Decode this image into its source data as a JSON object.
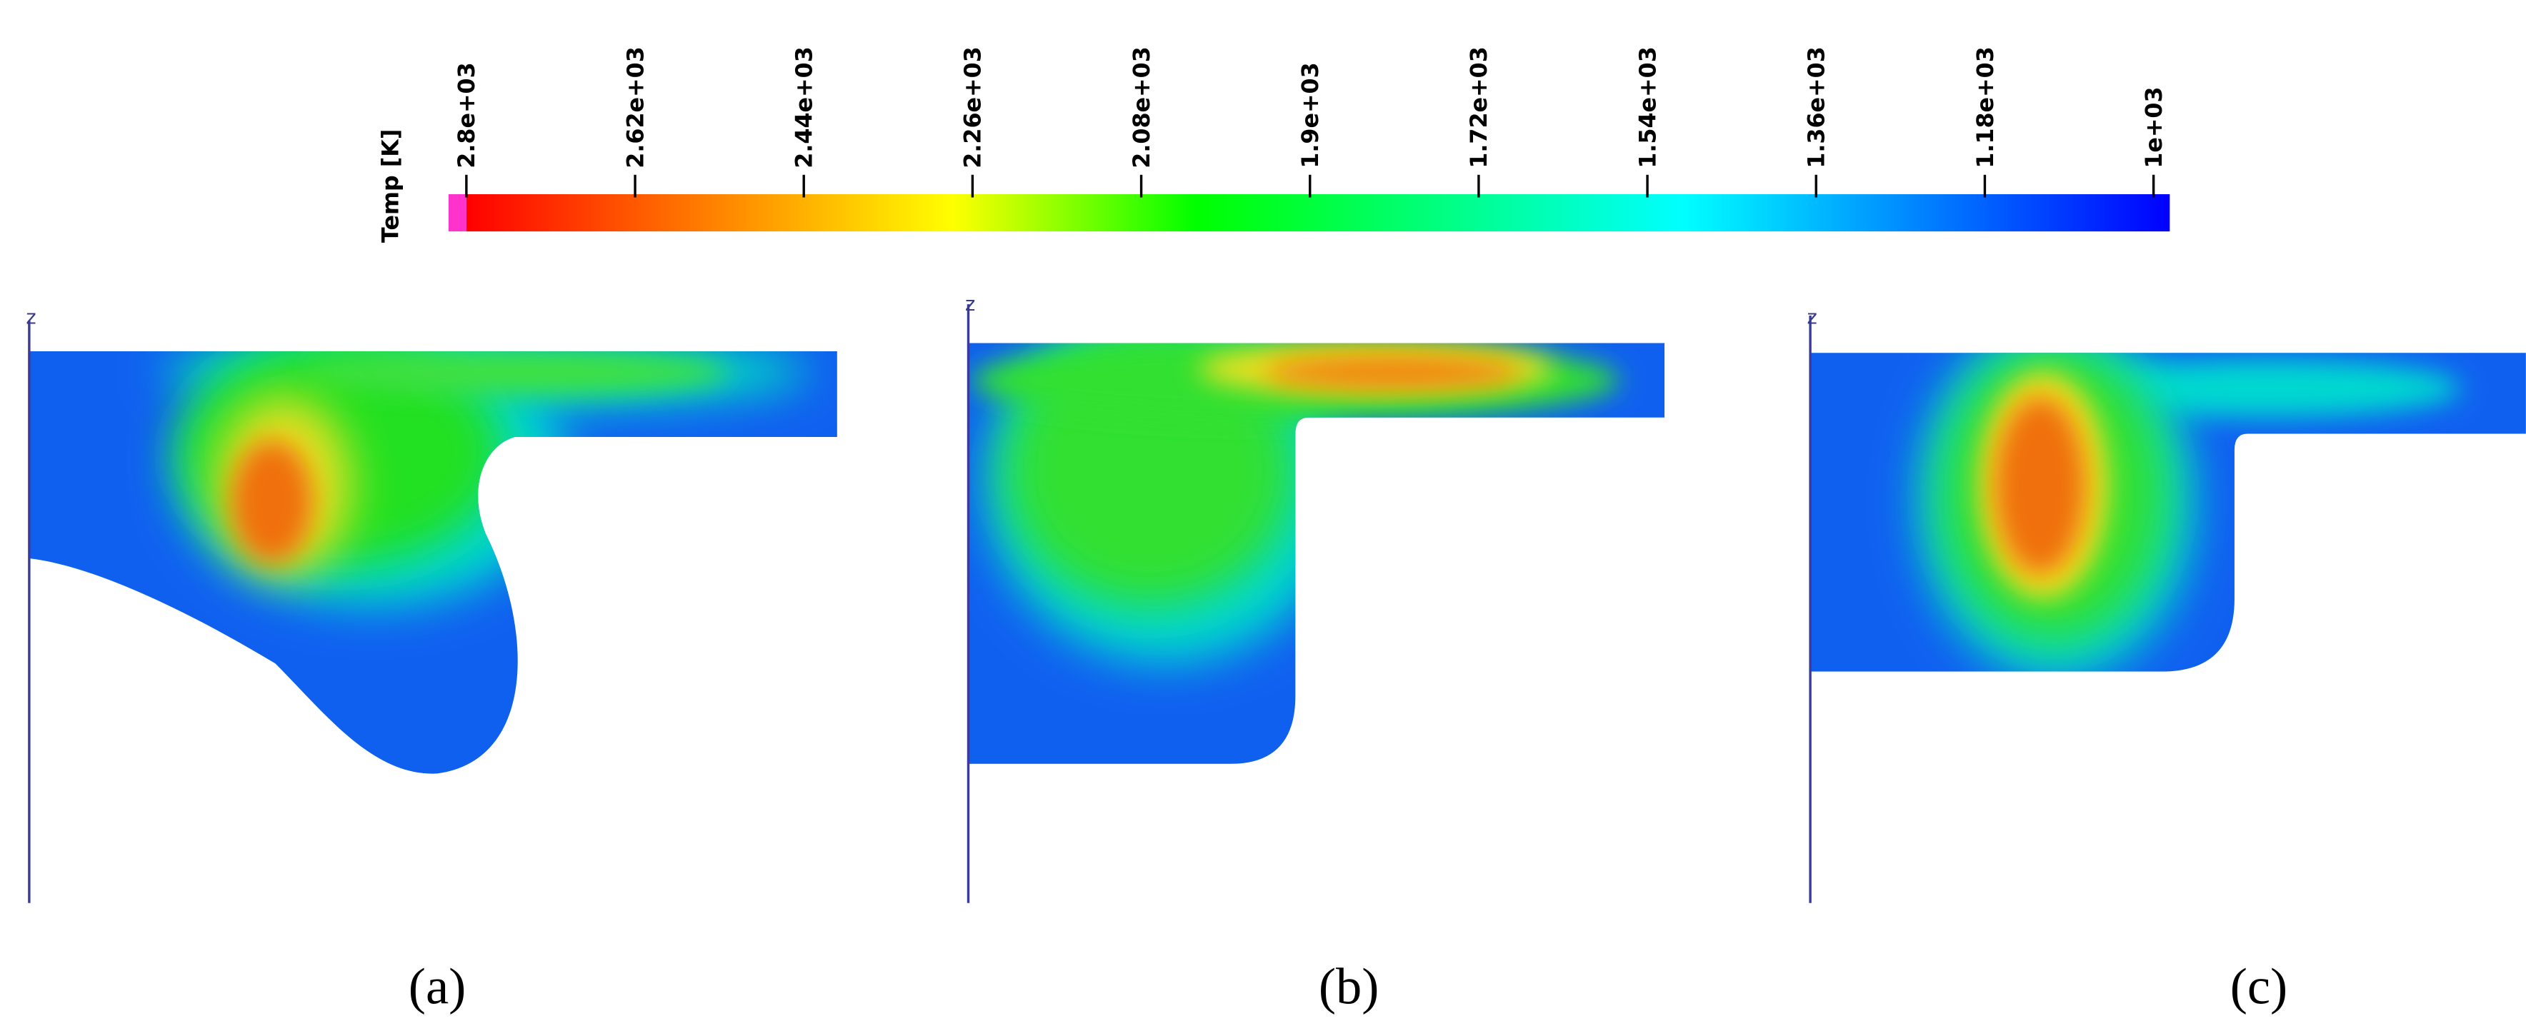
{
  "colorbar": {
    "title": "Temp [K]",
    "range": [
      2800,
      1000
    ],
    "ticks": [
      {
        "value": 2800,
        "label": "2.8e+03"
      },
      {
        "value": 2620,
        "label": "2.62e+03"
      },
      {
        "value": 2440,
        "label": "2.44e+03"
      },
      {
        "value": 2260,
        "label": "2.26e+03"
      },
      {
        "value": 2080,
        "label": "2.08e+03"
      },
      {
        "value": 1900,
        "label": "1.9e+03"
      },
      {
        "value": 1720,
        "label": "1.72e+03"
      },
      {
        "value": 1540,
        "label": "1.54e+03"
      },
      {
        "value": 1360,
        "label": "1.36e+03"
      },
      {
        "value": 1180,
        "label": "1.18e+03"
      },
      {
        "value": 1000,
        "label": "1e+03"
      }
    ],
    "colors": [
      "#ff0000",
      "#ff8000",
      "#ffff00",
      "#00ff00",
      "#00ff80",
      "#00ffff",
      "#0080ff",
      "#0000ff"
    ],
    "over_color": "#ff33cc"
  },
  "panels": [
    {
      "label": "(a)",
      "axis_label": "z"
    },
    {
      "label": "(b)",
      "axis_label": "z"
    },
    {
      "label": "(c)",
      "axis_label": "z"
    }
  ]
}
